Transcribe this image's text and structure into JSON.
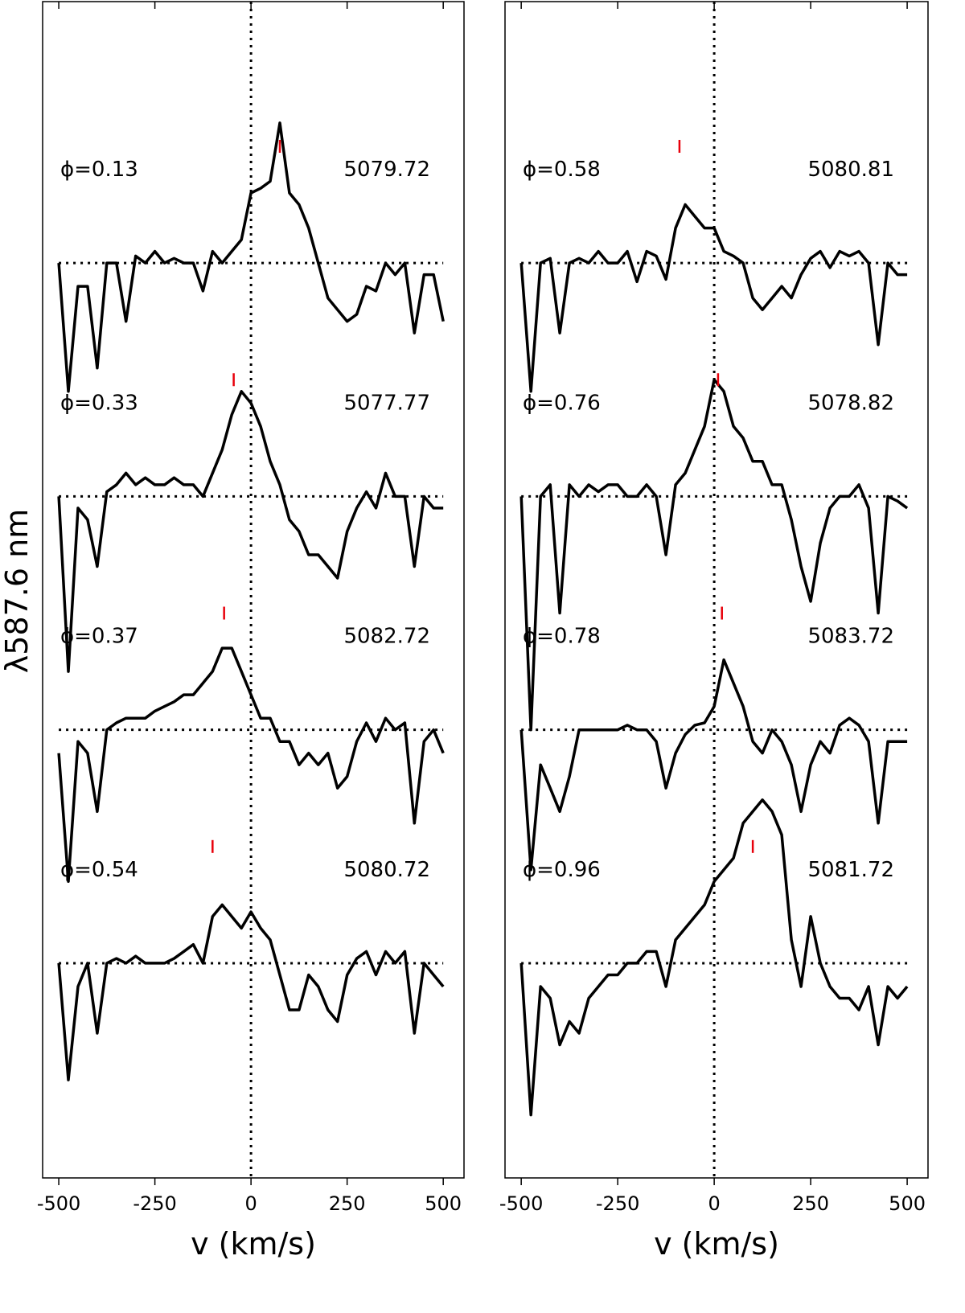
{
  "chart_data": [
    {
      "type": "line",
      "xlabel": "v (km/s)",
      "ylabel": "λ587.6 nm",
      "xlim": [
        -542,
        554
      ],
      "ylim": [
        0.08,
        5.12
      ],
      "xticks": [
        -500,
        -250,
        0,
        250,
        500
      ],
      "vline": 0,
      "x": [
        -500,
        -475,
        -450,
        -425,
        -400,
        -375,
        -350,
        -325,
        -300,
        -275,
        -250,
        -225,
        -200,
        -175,
        -150,
        -125,
        -100,
        -75,
        -50,
        -25,
        0,
        25,
        50,
        75,
        100,
        125,
        150,
        175,
        200,
        225,
        250,
        275,
        300,
        325,
        350,
        375,
        400,
        425,
        450,
        475,
        500
      ],
      "series": [
        {
          "name": "ϕ=0.13",
          "date": "5079.72",
          "color": "#000000",
          "continuum": 4,
          "marker": [
            75,
            4.5
          ],
          "marker_color": "#e8000b",
          "values": [
            4,
            3.45,
            3.9,
            3.9,
            3.55,
            4,
            4,
            3.75,
            4.03,
            4,
            4.05,
            4,
            4.02,
            4,
            4,
            3.88,
            4.05,
            4,
            4.05,
            4.1,
            4.3,
            4.32,
            4.35,
            4.6,
            4.3,
            4.25,
            4.15,
            4,
            3.85,
            3.8,
            3.75,
            3.78,
            3.9,
            3.88,
            4,
            3.95,
            4,
            3.7,
            3.95,
            3.95,
            3.75
          ]
        },
        {
          "name": "ϕ=0.33",
          "date": "5077.77",
          "color": "#000000",
          "continuum": 3,
          "marker": [
            -45,
            3.5
          ],
          "marker_color": "#e8000b",
          "values": [
            3,
            2.25,
            2.95,
            2.9,
            2.7,
            3.02,
            3.05,
            3.1,
            3.05,
            3.08,
            3.05,
            3.05,
            3.08,
            3.05,
            3.05,
            3,
            3.1,
            3.2,
            3.35,
            3.45,
            3.4,
            3.3,
            3.15,
            3.05,
            2.9,
            2.85,
            2.75,
            2.75,
            2.7,
            2.65,
            2.85,
            2.95,
            3.02,
            2.95,
            3.1,
            3,
            3,
            2.7,
            3,
            2.95,
            2.95
          ]
        },
        {
          "name": "ϕ=0.37",
          "date": "5082.72",
          "color": "#000000",
          "continuum": 2,
          "marker": [
            -70,
            2.5
          ],
          "marker_color": "#e8000b",
          "values": [
            1.9,
            1.35,
            1.95,
            1.9,
            1.65,
            2,
            2.03,
            2.05,
            2.05,
            2.05,
            2.08,
            2.1,
            2.12,
            2.15,
            2.15,
            2.2,
            2.25,
            2.35,
            2.35,
            2.25,
            2.15,
            2.05,
            2.05,
            1.95,
            1.95,
            1.85,
            1.9,
            1.85,
            1.9,
            1.75,
            1.8,
            1.95,
            2.03,
            1.95,
            2.05,
            2,
            2.03,
            1.6,
            1.95,
            2,
            1.9
          ]
        },
        {
          "name": "ϕ=0.54",
          "date": "5080.72",
          "color": "#000000",
          "continuum": 1,
          "marker": [
            -100,
            1.5
          ],
          "marker_color": "#e8000b",
          "values": [
            1,
            0.5,
            0.9,
            1,
            0.7,
            1,
            1.02,
            1,
            1.03,
            1,
            1,
            1,
            1.02,
            1.05,
            1.08,
            1,
            1.2,
            1.25,
            1.2,
            1.15,
            1.22,
            1.15,
            1.1,
            0.95,
            0.8,
            0.8,
            0.95,
            0.9,
            0.8,
            0.75,
            0.95,
            1.02,
            1.05,
            0.95,
            1.05,
            1,
            1.05,
            0.7,
            1,
            0.95,
            0.9
          ]
        }
      ]
    },
    {
      "type": "line",
      "xlabel": "v (km/s)",
      "xlim": [
        -542,
        554
      ],
      "ylim": [
        0.08,
        5.12
      ],
      "xticks": [
        -500,
        -250,
        0,
        250,
        500
      ],
      "vline": 0,
      "x": [
        -500,
        -475,
        -450,
        -425,
        -400,
        -375,
        -350,
        -325,
        -300,
        -275,
        -250,
        -225,
        -200,
        -175,
        -150,
        -125,
        -100,
        -75,
        -50,
        -25,
        0,
        25,
        50,
        75,
        100,
        125,
        150,
        175,
        200,
        225,
        250,
        275,
        300,
        325,
        350,
        375,
        400,
        425,
        450,
        475,
        500
      ],
      "series": [
        {
          "name": "ϕ=0.58",
          "date": "5080.81",
          "color": "#000000",
          "continuum": 4,
          "marker": [
            -90,
            4.5
          ],
          "marker_color": "#e8000b",
          "values": [
            4,
            3.45,
            4,
            4.02,
            3.7,
            4,
            4.02,
            4,
            4.05,
            4,
            4,
            4.05,
            3.92,
            4.05,
            4.03,
            3.93,
            4.15,
            4.25,
            4.2,
            4.15,
            4.15,
            4.05,
            4.03,
            4,
            3.85,
            3.8,
            3.85,
            3.9,
            3.85,
            3.95,
            4.02,
            4.05,
            3.98,
            4.05,
            4.03,
            4.05,
            4,
            3.65,
            4,
            3.95,
            3.95
          ]
        },
        {
          "name": "ϕ=0.76",
          "date": "5078.82",
          "color": "#000000",
          "continuum": 3,
          "marker": [
            10,
            3.5
          ],
          "marker_color": "#e8000b",
          "values": [
            3,
            2,
            3,
            3.05,
            2.5,
            3.05,
            3,
            3.05,
            3.02,
            3.05,
            3.05,
            3,
            3,
            3.05,
            3,
            2.75,
            3.05,
            3.1,
            3.2,
            3.3,
            3.5,
            3.45,
            3.3,
            3.25,
            3.15,
            3.15,
            3.05,
            3.05,
            2.9,
            2.7,
            2.55,
            2.8,
            2.95,
            3,
            3,
            3.05,
            2.95,
            2.5,
            3,
            2.98,
            2.95
          ]
        },
        {
          "name": "ϕ=0.78",
          "date": "5083.72",
          "color": "#000000",
          "continuum": 2,
          "marker": [
            20,
            2.5
          ],
          "marker_color": "#e8000b",
          "values": [
            2,
            1.4,
            1.85,
            1.75,
            1.65,
            1.8,
            2,
            2,
            2,
            2,
            2,
            2.02,
            2,
            2,
            1.95,
            1.75,
            1.9,
            1.98,
            2.02,
            2.03,
            2.1,
            2.3,
            2.2,
            2.1,
            1.95,
            1.9,
            2,
            1.95,
            1.85,
            1.65,
            1.85,
            1.95,
            1.9,
            2.02,
            2.05,
            2.02,
            1.95,
            1.6,
            1.95,
            1.95,
            1.95
          ]
        },
        {
          "name": "ϕ=0.96",
          "date": "5081.72",
          "color": "#000000",
          "continuum": 1,
          "marker": [
            100,
            1.5
          ],
          "marker_color": "#e8000b",
          "values": [
            1,
            0.35,
            0.9,
            0.85,
            0.65,
            0.75,
            0.7,
            0.85,
            0.9,
            0.95,
            0.95,
            1,
            1,
            1.05,
            1.05,
            0.9,
            1.1,
            1.15,
            1.2,
            1.25,
            1.35,
            1.4,
            1.45,
            1.6,
            1.65,
            1.7,
            1.65,
            1.55,
            1.1,
            0.9,
            1.2,
            1,
            0.9,
            0.85,
            0.85,
            0.8,
            0.9,
            0.65,
            0.9,
            0.85,
            0.9
          ]
        }
      ]
    }
  ]
}
